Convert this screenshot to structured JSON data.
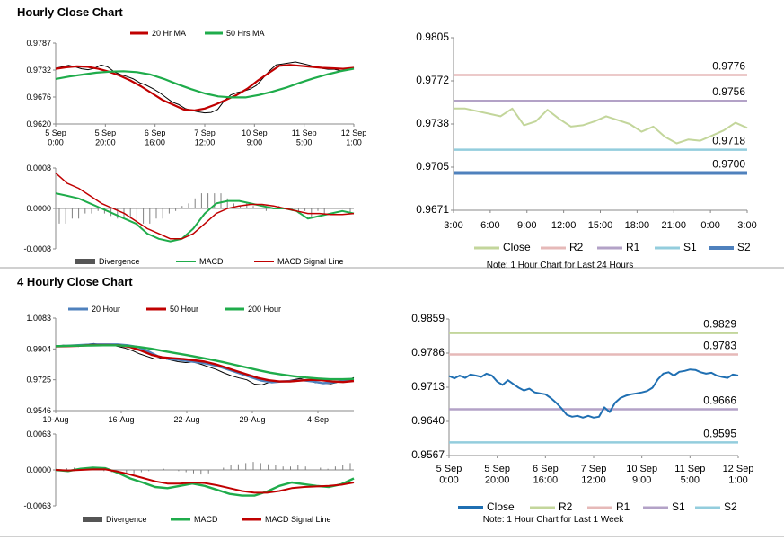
{
  "sections": {
    "hourly_title": "Hourly Close Chart",
    "four_hourly_title": "4 Hourly Close Chart"
  },
  "colors": {
    "red": "#c00000",
    "green": "#1fac4b",
    "blue": "#4f81bd",
    "close_green": "#c3d69b",
    "r2": "#e6b9b8",
    "r1": "#b3a2c7",
    "s1": "#93cddd",
    "s2": "#4f81bd",
    "close_blue": "#1f6fb2",
    "r2_green": "#c3d69b",
    "s1_purple": "#b3a2c7",
    "s2_teal": "#93cddd",
    "hist": "#808080"
  },
  "chart_data": [
    {
      "id": "hourly_price",
      "type": "line",
      "title": "",
      "legend": [
        "20 Hr MA",
        "50 Hrs MA"
      ],
      "xtick_labels": [
        "5 Sep\n0:00",
        "5 Sep\n20:00",
        "6 Sep\n16:00",
        "7 Sep\n12:00",
        "10 Sep\n9:00",
        "11 Sep\n5:00",
        "12 Sep\n1:00"
      ],
      "yticks": [
        "0.9787",
        "0.9732",
        "0.9676",
        "0.9620"
      ],
      "ylim": [
        0.962,
        0.9787
      ],
      "series": [
        {
          "name": "Close",
          "color_key": "black",
          "values": [
            0.9735,
            0.9738,
            0.9741,
            0.9738,
            0.9734,
            0.9732,
            0.9735,
            0.9742,
            0.9738,
            0.9728,
            0.9722,
            0.9718,
            0.9713,
            0.9705,
            0.97,
            0.9693,
            0.9685,
            0.9675,
            0.9665,
            0.966,
            0.9652,
            0.9648,
            0.9645,
            0.9643,
            0.9644,
            0.965,
            0.9668,
            0.968,
            0.9685,
            0.9688,
            0.9692,
            0.97,
            0.9715,
            0.973,
            0.9742,
            0.9744,
            0.9746,
            0.9748,
            0.9745,
            0.9742,
            0.9738,
            0.9735,
            0.9733,
            0.9733,
            0.973,
            0.9731,
            0.9737
          ]
        },
        {
          "name": "20 Hr MA",
          "color_key": "red",
          "values": [
            0.9734,
            0.9737,
            0.9739,
            0.9738,
            0.9734,
            0.9728,
            0.972,
            0.971,
            0.9698,
            0.9684,
            0.967,
            0.966,
            0.965,
            0.9648,
            0.9652,
            0.966,
            0.967,
            0.968,
            0.9693,
            0.971,
            0.9725,
            0.974,
            0.9742,
            0.974,
            0.9738,
            0.9736,
            0.9735,
            0.9734,
            0.9736
          ]
        },
        {
          "name": "50 Hrs MA",
          "color_key": "green",
          "values": [
            0.9713,
            0.9718,
            0.9722,
            0.9726,
            0.9728,
            0.9729,
            0.9727,
            0.9722,
            0.9713,
            0.9702,
            0.9692,
            0.9683,
            0.9677,
            0.9675,
            0.9675,
            0.968,
            0.9687,
            0.9695,
            0.9705,
            0.9714,
            0.9722,
            0.9729,
            0.9734
          ]
        }
      ]
    },
    {
      "id": "hourly_macd",
      "type": "line",
      "legend": [
        "Divergence",
        "MACD",
        "MACD Signal Line"
      ],
      "yticks": [
        "0.0008",
        "0.0000",
        "-0.0008"
      ],
      "ylim": [
        -0.0008,
        0.0008
      ],
      "series": [
        {
          "name": "Divergence",
          "color_key": "hist",
          "values": [
            -0.0003,
            -0.0003,
            -0.0002,
            -0.0002,
            -0.0001,
            -0.0001,
            -5e-05,
            -0.0001,
            -0.00015,
            -0.0002,
            -0.0002,
            -0.0002,
            -0.0003,
            -0.0003,
            -0.0003,
            -0.0002,
            -0.0002,
            -0.0001,
            -5e-05,
            5e-05,
            0.0001,
            0.0002,
            0.0003,
            0.0003,
            0.0003,
            0.0003,
            0.0002,
            0.0001,
            5e-05,
            0.0001,
            5e-05,
            0.0,
            -5e-05,
            0.0,
            5e-05,
            0.0,
            -5e-05,
            -0.0001,
            -5e-05,
            -0.0002,
            -5e-05,
            -0.0001,
            0.0,
            0.0,
            0.0,
            -0.0001
          ]
        },
        {
          "name": "MACD",
          "color_key": "green",
          "values": [
            0.0003,
            0.00025,
            0.0002,
            0.0001,
            0.0,
            -0.0001,
            -0.0002,
            -0.0003,
            -0.0005,
            -0.0006,
            -0.00065,
            -0.0006,
            -0.0004,
            -0.0001,
            0.0001,
            0.00015,
            0.00015,
            0.0001,
            5e-05,
            0.0,
            0.0,
            -5e-05,
            -0.0002,
            -0.00015,
            -0.0001,
            -5e-05,
            -0.0001
          ]
        },
        {
          "name": "MACD Signal Line",
          "color_key": "red",
          "values": [
            0.0007,
            0.0005,
            0.0004,
            0.00025,
            0.0001,
            0.0,
            -0.0001,
            -0.00025,
            -0.0004,
            -0.0005,
            -0.0006,
            -0.0006,
            -0.0005,
            -0.0003,
            -0.0001,
            0.0,
            5e-05,
            8e-05,
            8e-05,
            5e-05,
            0.0,
            -5e-05,
            -0.0001,
            -0.0001,
            -0.00012,
            -0.00012,
            -0.0001
          ]
        }
      ]
    },
    {
      "id": "hourly_levels",
      "type": "line",
      "note": "Note: 1 Hour Chart for Last 24 Hours",
      "xtick_labels": [
        "3:00",
        "6:00",
        "9:00",
        "12:00",
        "15:00",
        "18:00",
        "21:00",
        "0:00",
        "3:00"
      ],
      "yticks": [
        "0.9805",
        "0.9772",
        "0.9738",
        "0.9705",
        "0.9671"
      ],
      "ylim": [
        0.9671,
        0.9805
      ],
      "legend": [
        "Close",
        "R2",
        "R1",
        "S1",
        "S2"
      ],
      "series": [
        {
          "name": "Close",
          "color_key": "close_green",
          "values": [
            0.975,
            0.975,
            0.9748,
            0.9746,
            0.9744,
            0.975,
            0.9737,
            0.974,
            0.9749,
            0.9742,
            0.9736,
            0.9737,
            0.974,
            0.9744,
            0.9741,
            0.9738,
            0.9732,
            0.9736,
            0.9728,
            0.9723,
            0.9726,
            0.9725,
            0.9729,
            0.9733,
            0.9739,
            0.9735
          ]
        },
        {
          "name": "R2",
          "color_key": "r2",
          "level": 0.9776,
          "label": "0.9776"
        },
        {
          "name": "R1",
          "color_key": "r1",
          "level": 0.9756,
          "label": "0.9756"
        },
        {
          "name": "S1",
          "color_key": "s1",
          "level": 0.9718,
          "label": "0.9718"
        },
        {
          "name": "S2",
          "color_key": "s2",
          "level": 0.97,
          "label": "0.9700"
        }
      ]
    },
    {
      "id": "four_hourly_price",
      "type": "line",
      "legend": [
        "20 Hour",
        "50 Hour",
        "200 Hour"
      ],
      "xtick_labels": [
        "10-Aug",
        "16-Aug",
        "22-Aug",
        "29-Aug",
        "4-Sep"
      ],
      "yticks": [
        "1.0083",
        "0.9904",
        "0.9725",
        "0.9546"
      ],
      "ylim": [
        0.9546,
        1.0083
      ],
      "series": [
        {
          "name": "Close",
          "color_key": "black",
          "values": [
            0.992,
            0.9925,
            0.9922,
            0.9918,
            0.993,
            0.9935,
            0.9928,
            0.9932,
            0.992,
            0.991,
            0.9895,
            0.9875,
            0.986,
            0.9845,
            0.985,
            0.984,
            0.983,
            0.9825,
            0.9828,
            0.9815,
            0.98,
            0.9785,
            0.9765,
            0.9748,
            0.9735,
            0.9725,
            0.97,
            0.9695,
            0.9712,
            0.9718,
            0.9715,
            0.9725,
            0.9732,
            0.972,
            0.9708,
            0.9705,
            0.9702,
            0.9712,
            0.972,
            0.9738
          ]
        },
        {
          "name": "20 Hour",
          "color_key": "blue",
          "values": [
            0.992,
            0.9922,
            0.9925,
            0.9928,
            0.993,
            0.993,
            0.993,
            0.9925,
            0.9915,
            0.989,
            0.986,
            0.9845,
            0.984,
            0.9832,
            0.9825,
            0.9815,
            0.98,
            0.978,
            0.976,
            0.974,
            0.972,
            0.971,
            0.9715,
            0.9718,
            0.9722,
            0.9715,
            0.9705,
            0.971,
            0.972,
            0.9728
          ]
        },
        {
          "name": "50 Hour",
          "color_key": "red",
          "values": [
            0.9918,
            0.992,
            0.9922,
            0.9925,
            0.9926,
            0.9926,
            0.9925,
            0.9915,
            0.9895,
            0.987,
            0.9855,
            0.985,
            0.9845,
            0.9838,
            0.983,
            0.9815,
            0.9795,
            0.9775,
            0.9755,
            0.9735,
            0.9722,
            0.9715,
            0.9715,
            0.972,
            0.9725,
            0.9722,
            0.9715,
            0.9712,
            0.9718
          ]
        },
        {
          "name": "200 Hour",
          "color_key": "green",
          "values": [
            0.992,
            0.9922,
            0.9923,
            0.9924,
            0.9925,
            0.9925,
            0.9922,
            0.9915,
            0.9905,
            0.9892,
            0.988,
            0.9868,
            0.9855,
            0.9842,
            0.9828,
            0.9812,
            0.9796,
            0.978,
            0.9766,
            0.9755,
            0.9745,
            0.9738,
            0.9732,
            0.9728,
            0.9728,
            0.973
          ]
        }
      ]
    },
    {
      "id": "four_hourly_macd",
      "type": "line",
      "legend": [
        "Divergence",
        "MACD",
        "MACD Signal Line"
      ],
      "yticks": [
        "0.0063",
        "0.0000",
        "-0.0063"
      ],
      "ylim": [
        -0.0063,
        0.0063
      ],
      "series": [
        {
          "name": "Divergence",
          "color_key": "hist",
          "values": [
            0.0,
            0.0003,
            0.0004,
            0.0003,
            0.0002,
            0.0,
            -0.0002,
            -0.0004,
            -0.0006,
            -0.0008,
            -0.0006,
            -0.0004,
            -0.0002,
            0.0,
            0.0002,
            0.0,
            -0.0002,
            -0.0004,
            -0.0006,
            -0.0008,
            -0.0006,
            -0.0002,
            0.0004,
            0.0008,
            0.001,
            0.0012,
            0.0014,
            0.0012,
            0.001,
            0.0008,
            0.0006,
            0.0006,
            0.0008,
            0.0006,
            0.0008,
            0.0004,
            0.0002,
            0.0006,
            0.0008,
            0.0012
          ]
        },
        {
          "name": "MACD",
          "color_key": "green",
          "values": [
            0.0,
            -0.0002,
            0.0002,
            0.0004,
            0.0003,
            -0.0005,
            -0.0015,
            -0.0022,
            -0.003,
            -0.0032,
            -0.0028,
            -0.0024,
            -0.0028,
            -0.0035,
            -0.0042,
            -0.0045,
            -0.0045,
            -0.0038,
            -0.0028,
            -0.0022,
            -0.0025,
            -0.0028,
            -0.003,
            -0.0025,
            -0.0015
          ]
        },
        {
          "name": "MACD Signal Line",
          "color_key": "red",
          "values": [
            0.0,
            -0.0001,
            0.0,
            0.0001,
            0.0001,
            -0.0003,
            -0.0008,
            -0.0014,
            -0.002,
            -0.0024,
            -0.0024,
            -0.0022,
            -0.0023,
            -0.0027,
            -0.0032,
            -0.0037,
            -0.004,
            -0.004,
            -0.0037,
            -0.0032,
            -0.003,
            -0.0029,
            -0.0028,
            -0.0026,
            -0.0022
          ]
        }
      ]
    },
    {
      "id": "four_hourly_levels",
      "type": "line",
      "note": "Note: 1 Hour Chart for Last 1 Week",
      "xtick_labels": [
        "5 Sep\n0:00",
        "5 Sep\n20:00",
        "6 Sep\n16:00",
        "7 Sep\n12:00",
        "10 Sep\n9:00",
        "11 Sep\n5:00",
        "12 Sep\n1:00"
      ],
      "yticks": [
        "0.9859",
        "0.9786",
        "0.9713",
        "0.9640",
        "0.9567"
      ],
      "ylim": [
        0.9567,
        0.9859
      ],
      "legend": [
        "Close",
        "R2",
        "R1",
        "S1",
        "S2"
      ],
      "series": [
        {
          "name": "Close",
          "color_key": "close_blue",
          "values": [
            0.9737,
            0.9732,
            0.9738,
            0.9733,
            0.974,
            0.9738,
            0.9735,
            0.9742,
            0.9738,
            0.9725,
            0.9718,
            0.9728,
            0.972,
            0.9712,
            0.9706,
            0.971,
            0.9702,
            0.97,
            0.9698,
            0.969,
            0.968,
            0.9668,
            0.9654,
            0.965,
            0.9652,
            0.9648,
            0.9652,
            0.9648,
            0.965,
            0.967,
            0.966,
            0.968,
            0.969,
            0.9695,
            0.9698,
            0.97,
            0.9702,
            0.9705,
            0.9712,
            0.973,
            0.9742,
            0.9745,
            0.9738,
            0.9746,
            0.9748,
            0.9751,
            0.975,
            0.9745,
            0.9742,
            0.9744,
            0.9738,
            0.9735,
            0.9733,
            0.974,
            0.9738
          ]
        },
        {
          "name": "R2",
          "color_key": "r2_green",
          "level": 0.9829,
          "label": "0.9829"
        },
        {
          "name": "R1",
          "color_key": "r2",
          "level": 0.9783,
          "label": "0.9783"
        },
        {
          "name": "S1",
          "color_key": "s1_purple",
          "level": 0.9666,
          "label": "0.9666"
        },
        {
          "name": "S2",
          "color_key": "s2_teal",
          "level": 0.9595,
          "label": "0.9595"
        }
      ]
    }
  ]
}
